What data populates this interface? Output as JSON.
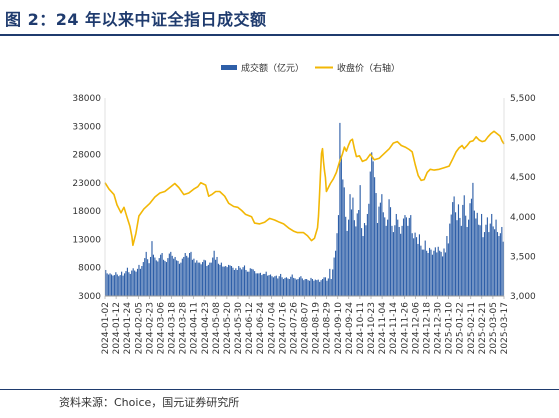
{
  "figure": {
    "title": "图 2：24 年以来中证全指日成交额",
    "source": "资料来源：Choice，国元证券研究所"
  },
  "colors": {
    "title": "#1f3b6e",
    "bar": "#2e5fa8",
    "line": "#f2b705"
  },
  "chart_data": {
    "type": "bar",
    "legend_position": "top-center",
    "grid": false,
    "series": [
      {
        "name": "成交额（亿元）",
        "type": "bar",
        "axis": "left",
        "color": "#2e5fa8"
      },
      {
        "name": "收盘价（右轴）",
        "type": "line",
        "axis": "right",
        "color": "#f2b705"
      }
    ],
    "y_left": {
      "min": 3000,
      "max": 38000,
      "ticks": [
        3000,
        8000,
        13000,
        18000,
        23000,
        28000,
        33000,
        38000
      ]
    },
    "y_right": {
      "min": 3000,
      "max": 5500,
      "tick_values": [
        3000,
        3500,
        4000,
        4500,
        5000,
        5500
      ],
      "tick_labels": [
        "3,000",
        "3,500",
        "4,000",
        "4,500",
        "5,000",
        "5,500"
      ]
    },
    "x_tick_labels": [
      "2024-01-02",
      "2024-01-12",
      "2024-01-24",
      "2024-02-05",
      "2024-02-23",
      "2024-03-06",
      "2024-03-18",
      "2024-03-28",
      "2024-04-11",
      "2024-04-23",
      "2024-05-08",
      "2024-05-20",
      "2024-05-30",
      "2024-06-12",
      "2024-06-24",
      "2024-07-04",
      "2024-07-16",
      "2024-07-26",
      "2024-08-07",
      "2024-08-19",
      "2024-08-29",
      "2024-09-10",
      "2024-09-24",
      "2024-10-11",
      "2024-10-23",
      "2024-11-04",
      "2024-11-14",
      "2024-11-26",
      "2024-12-06",
      "2024-12-18",
      "2024-12-30",
      "2025-01-10",
      "2025-01-22",
      "2025-02-11",
      "2025-02-21",
      "2025-03-05",
      "2025-03-17"
    ],
    "bar_values": [
      7600,
      7000,
      6800,
      7000,
      6800,
      6600,
      6700,
      7200,
      6800,
      6500,
      6700,
      7300,
      6600,
      7000,
      7400,
      8000,
      7200,
      6900,
      7500,
      7900,
      7500,
      7300,
      7800,
      8500,
      7800,
      8300,
      9000,
      9700,
      10800,
      9500,
      8800,
      9900,
      12700,
      10300,
      9800,
      9300,
      9100,
      9700,
      10300,
      10600,
      9400,
      9200,
      9000,
      9700,
      10500,
      10800,
      10100,
      9600,
      9900,
      9300,
      9200,
      8700,
      8900,
      9600,
      9900,
      10600,
      10100,
      9800,
      10600,
      10800,
      9400,
      9600,
      8900,
      9300,
      8900,
      8900,
      8600,
      9000,
      9400,
      9300,
      8300,
      8500,
      8900,
      8900,
      9800,
      11000,
      9400,
      9900,
      8700,
      8500,
      8900,
      8200,
      8200,
      8300,
      8100,
      8500,
      8400,
      8300,
      8000,
      7600,
      7900,
      7600,
      8300,
      8000,
      7700,
      8100,
      8400,
      7600,
      7300,
      7300,
      7900,
      7800,
      7700,
      7400,
      7000,
      7000,
      7000,
      7100,
      6700,
      6900,
      6900,
      7300,
      6600,
      6700,
      6800,
      6500,
      6300,
      6500,
      6600,
      6100,
      6500,
      6900,
      6300,
      6000,
      6200,
      6300,
      6100,
      6000,
      6400,
      6800,
      6200,
      6100,
      5900,
      6000,
      6300,
      6500,
      6100,
      5800,
      6000,
      6000,
      5800,
      5700,
      6200,
      6000,
      5700,
      5900,
      5800,
      5900,
      5500,
      5800,
      6000,
      6300,
      6300,
      5700,
      6100,
      7800,
      6000,
      7700,
      9800,
      11000,
      14100,
      17300,
      33600,
      27800,
      23600,
      22200,
      17000,
      14500,
      16500,
      21000,
      18300,
      20400,
      16400,
      15300,
      17600,
      18200,
      22600,
      15000,
      13600,
      15900,
      15500,
      17500,
      19300,
      25000,
      28400,
      26800,
      24000,
      21200,
      15900,
      18800,
      19500,
      21000,
      17800,
      16900,
      15400,
      16500,
      20100,
      18700,
      15400,
      14300,
      15500,
      17500,
      16500,
      15200,
      14000,
      15400,
      16700,
      17300,
      16900,
      15400,
      16800,
      17300,
      14100,
      13200,
      14200,
      13400,
      12200,
      13900,
      11900,
      11200,
      11200,
      12800,
      11000,
      10600,
      11500,
      11200,
      10300,
      11000,
      11600,
      10700,
      11700,
      11000,
      10800,
      10000,
      11400,
      10700,
      13600,
      12300,
      15800,
      17400,
      19600,
      20600,
      17800,
      16400,
      19200,
      16800,
      15400,
      19100,
      20800,
      17200,
      15200,
      16500,
      19400,
      20200,
      23000,
      18100,
      16700,
      17700,
      15600,
      15500,
      17500,
      13400,
      14300,
      15600,
      16900,
      14300,
      15800,
      17500,
      15300,
      14800,
      16500,
      14300,
      13600,
      14100,
      15200,
      12600
    ],
    "line_points": [
      [
        0,
        4430
      ],
      [
        4,
        4350
      ],
      [
        9,
        4280
      ],
      [
        12,
        4150
      ],
      [
        16,
        4050
      ],
      [
        19,
        4120
      ],
      [
        22,
        4000
      ],
      [
        25,
        3880
      ],
      [
        27,
        3750
      ],
      [
        28,
        3640
      ],
      [
        31,
        3790
      ],
      [
        34,
        4010
      ],
      [
        39,
        4100
      ],
      [
        45,
        4170
      ],
      [
        50,
        4250
      ],
      [
        55,
        4300
      ],
      [
        60,
        4320
      ],
      [
        66,
        4380
      ],
      [
        70,
        4420
      ],
      [
        74,
        4370
      ],
      [
        79,
        4280
      ],
      [
        84,
        4300
      ],
      [
        89,
        4350
      ],
      [
        93,
        4380
      ],
      [
        96,
        4430
      ],
      [
        101,
        4400
      ],
      [
        104,
        4260
      ],
      [
        107,
        4280
      ],
      [
        111,
        4320
      ],
      [
        115,
        4320
      ],
      [
        120,
        4260
      ],
      [
        124,
        4170
      ],
      [
        129,
        4130
      ],
      [
        133,
        4120
      ],
      [
        137,
        4080
      ],
      [
        141,
        4030
      ],
      [
        147,
        4000
      ],
      [
        150,
        3920
      ],
      [
        155,
        3910
      ],
      [
        160,
        3930
      ],
      [
        165,
        3980
      ],
      [
        170,
        3960
      ],
      [
        175,
        3930
      ],
      [
        179,
        3910
      ],
      [
        184,
        3860
      ],
      [
        189,
        3820
      ],
      [
        193,
        3800
      ],
      [
        199,
        3800
      ],
      [
        203,
        3760
      ],
      [
        207,
        3700
      ],
      [
        210,
        3730
      ],
      [
        213,
        3860
      ],
      [
        214,
        4010
      ],
      [
        215,
        4270
      ],
      [
        216,
        4550
      ],
      [
        217,
        4800
      ],
      [
        218,
        4860
      ],
      [
        219,
        4700
      ],
      [
        220,
        4580
      ],
      [
        221,
        4500
      ],
      [
        222,
        4320
      ],
      [
        224,
        4370
      ],
      [
        226,
        4420
      ],
      [
        229,
        4480
      ],
      [
        232,
        4560
      ],
      [
        235,
        4690
      ],
      [
        238,
        4790
      ],
      [
        240,
        4880
      ],
      [
        242,
        4830
      ],
      [
        244,
        4900
      ],
      [
        246,
        4960
      ],
      [
        248,
        4980
      ],
      [
        250,
        4860
      ],
      [
        252,
        4760
      ],
      [
        255,
        4770
      ],
      [
        258,
        4700
      ],
      [
        262,
        4720
      ],
      [
        266,
        4790
      ],
      [
        270,
        4720
      ],
      [
        275,
        4740
      ],
      [
        280,
        4800
      ],
      [
        285,
        4860
      ],
      [
        289,
        4930
      ],
      [
        293,
        4950
      ],
      [
        297,
        4900
      ],
      [
        301,
        4880
      ],
      [
        305,
        4850
      ],
      [
        308,
        4820
      ],
      [
        311,
        4660
      ],
      [
        314,
        4520
      ],
      [
        317,
        4460
      ],
      [
        320,
        4470
      ],
      [
        323,
        4560
      ],
      [
        326,
        4600
      ],
      [
        330,
        4590
      ],
      [
        335,
        4600
      ],
      [
        340,
        4620
      ],
      [
        345,
        4640
      ],
      [
        349,
        4740
      ],
      [
        352,
        4820
      ],
      [
        355,
        4870
      ],
      [
        358,
        4900
      ],
      [
        360,
        4860
      ],
      [
        363,
        4900
      ],
      [
        366,
        4950
      ],
      [
        369,
        4960
      ],
      [
        372,
        5010
      ],
      [
        375,
        4970
      ],
      [
        378,
        4950
      ],
      [
        381,
        4960
      ],
      [
        384,
        5010
      ],
      [
        387,
        5050
      ],
      [
        390,
        5080
      ],
      [
        393,
        5050
      ],
      [
        396,
        5020
      ],
      [
        398,
        4960
      ],
      [
        400,
        4920
      ]
    ]
  }
}
